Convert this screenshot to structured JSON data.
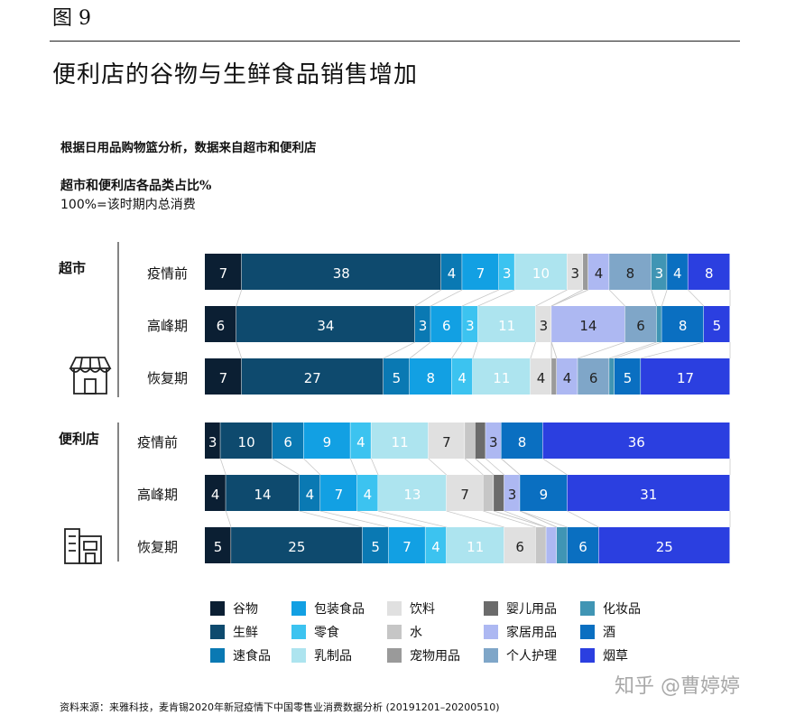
{
  "figure_label": "图 9",
  "title": "便利店的谷物与生鲜食品销售增加",
  "subtitle": "根据日用品购物篮分析，数据来自超市和便利店",
  "source": "资料来源：来雅科技，麦肯锡2020年新冠疫情下中国零售业消费数据分析 (20191201–20200510)",
  "watermark": "知乎 @曹婷婷",
  "chart_data": {
    "type": "bar",
    "orientation": "horizontal-stacked-100",
    "title": "超市和便利店各品类占比%",
    "note": "100%=该时期内总消费",
    "categories": [
      "谷物",
      "生鲜",
      "速食品",
      "包装食品",
      "零食",
      "乳制品",
      "饮料",
      "水",
      "宠物用品",
      "婴儿用品",
      "家居用品",
      "个人护理",
      "化妆品",
      "酒",
      "烟草"
    ],
    "colors": [
      "#0b1f33",
      "#0e4a6e",
      "#0a79b3",
      "#12a0e3",
      "#3cc3f0",
      "#ade4ef",
      "#e0e0e0",
      "#c6c6c6",
      "#9a9a9a",
      "#6b6b6b",
      "#adb8f2",
      "#7fa6c8",
      "#4095b4",
      "#0a6fc1",
      "#2b3fe0"
    ],
    "groups": [
      {
        "name": "超市",
        "periods": [
          {
            "name": "疫情前",
            "values": [
              7,
              38,
              4,
              7,
              3,
              10,
              3,
              0,
              1,
              0,
              4,
              8,
              3,
              4,
              8
            ]
          },
          {
            "name": "高峰期",
            "values": [
              6,
              34,
              3,
              6,
              3,
              11,
              3,
              0,
              0,
              0,
              14,
              6,
              1,
              8,
              5
            ]
          },
          {
            "name": "恢复期",
            "values": [
              7,
              27,
              5,
              8,
              4,
              11,
              4,
              0,
              1,
              0,
              4,
              6,
              1,
              5,
              17
            ]
          }
        ]
      },
      {
        "name": "便利店",
        "periods": [
          {
            "name": "疫情前",
            "values": [
              3,
              10,
              6,
              9,
              4,
              11,
              7,
              2,
              0,
              2,
              3,
              0,
              0,
              8,
              36
            ]
          },
          {
            "name": "高峰期",
            "values": [
              4,
              14,
              4,
              7,
              4,
              13,
              7,
              2,
              0,
              2,
              3,
              0,
              0,
              9,
              31
            ]
          },
          {
            "name": "恢复期",
            "values": [
              5,
              25,
              5,
              7,
              4,
              11,
              6,
              2,
              0,
              0,
              2,
              0,
              2,
              6,
              25
            ]
          }
        ]
      }
    ]
  }
}
